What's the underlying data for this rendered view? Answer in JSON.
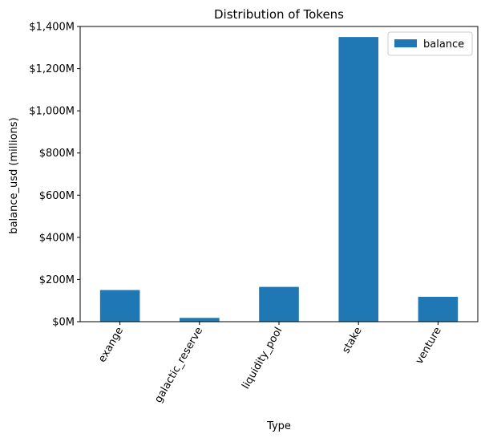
{
  "chart_data": {
    "type": "bar",
    "title": "Distribution of Tokens",
    "xlabel": "Type",
    "ylabel": "balance_usd (millions)",
    "categories": [
      "exange",
      "galactic_reserve",
      "liquidity_pool",
      "stake",
      "venture"
    ],
    "series": [
      {
        "name": "balance",
        "values": [
          150,
          18,
          165,
          1350,
          118
        ],
        "color": "#1f77b4"
      }
    ],
    "ylim": [
      0,
      1400
    ],
    "yticks": [
      0,
      200,
      400,
      600,
      800,
      1000,
      1200,
      1400
    ],
    "ytick_labels": [
      "$0M",
      "$200M",
      "$400M",
      "$600M",
      "$800M",
      "$1,000M",
      "$1,200M",
      "$1,400M"
    ],
    "grid": false,
    "legend_position": "top-right",
    "xtick_rotation_deg": 60
  }
}
